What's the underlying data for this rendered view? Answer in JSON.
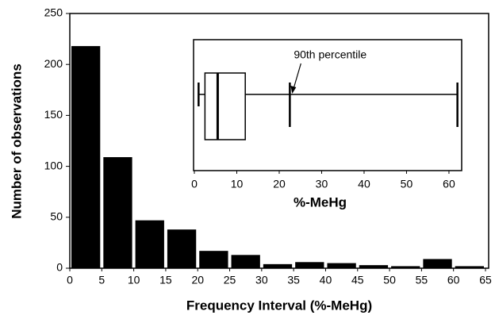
{
  "chart_data": [
    {
      "type": "histogram",
      "xlabel": "Frequency Interval (%-MeHg)",
      "ylabel": "Number of observations",
      "bins": [
        0,
        5,
        10,
        15,
        20,
        25,
        30,
        35,
        40,
        45,
        50,
        55,
        60,
        65
      ],
      "values": [
        218,
        109,
        47,
        38,
        17,
        13,
        4,
        6,
        5,
        3,
        2,
        9,
        2
      ],
      "color": "#000000",
      "xlim": [
        0,
        65
      ],
      "xticks": [
        0,
        5,
        10,
        15,
        20,
        25,
        30,
        35,
        40,
        45,
        50,
        55,
        60,
        65
      ],
      "ylim": [
        0,
        250
      ],
      "yticks": [
        0,
        50,
        100,
        150,
        200,
        250
      ],
      "grid": false
    },
    {
      "type": "box",
      "xlabel": "%-MeHg",
      "annotation": "90th percentile",
      "box": {
        "min": 1,
        "q1": 2.5,
        "median": 5.5,
        "q3": 12,
        "p90": 22.5,
        "max": 62
      },
      "color": "#000000",
      "xlim": [
        0,
        63
      ],
      "xticks": [
        0,
        10,
        20,
        30,
        40,
        50,
        60
      ]
    }
  ]
}
